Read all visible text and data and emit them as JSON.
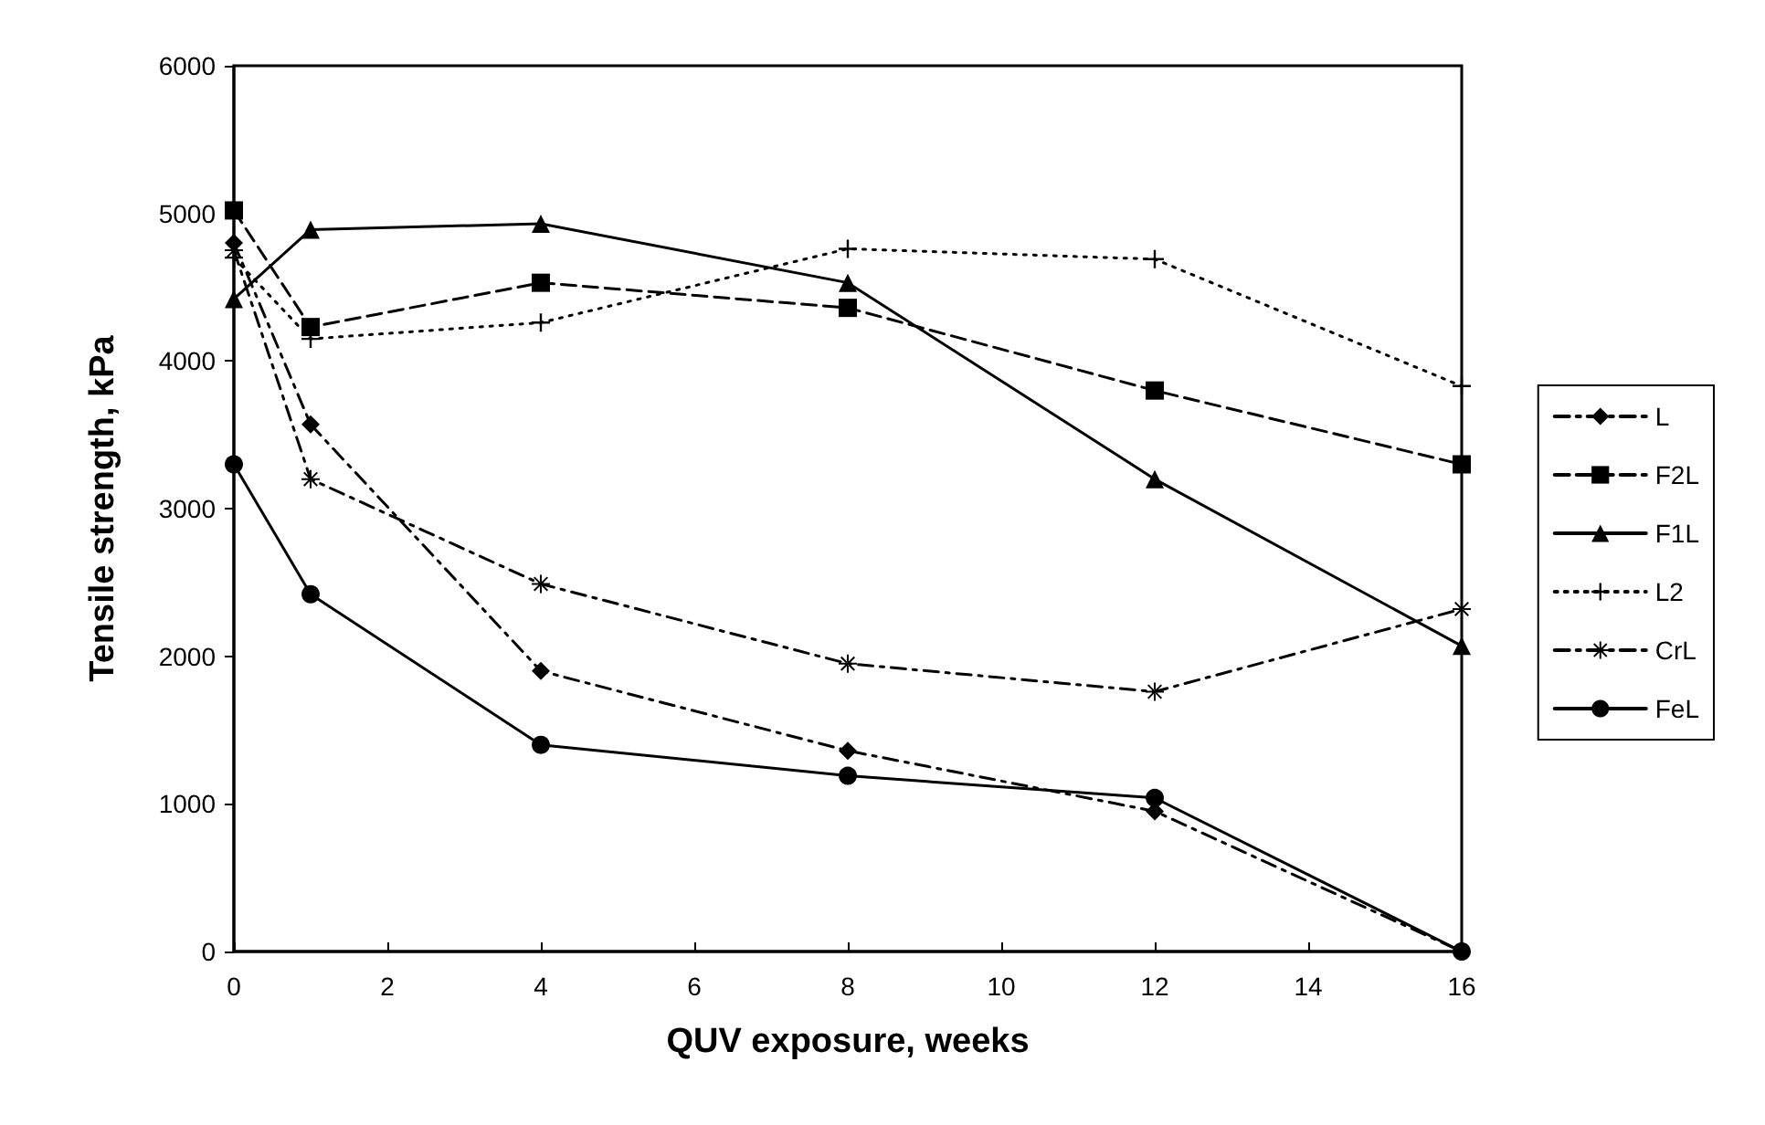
{
  "chart_data": {
    "type": "line",
    "xlabel": "QUV exposure, weeks",
    "ylabel": "Tensile strength, kPa",
    "x": [
      0,
      1,
      4,
      8,
      12,
      16
    ],
    "series": [
      {
        "name": "L",
        "color": "#000000",
        "marker": "diamond",
        "line_style": "dashdot",
        "values": [
          4800,
          3570,
          1900,
          1360,
          950,
          0
        ]
      },
      {
        "name": "F2L",
        "color": "#000000",
        "marker": "square",
        "line_style": "dashed",
        "values": [
          5020,
          4230,
          4530,
          4360,
          3800,
          3300
        ]
      },
      {
        "name": "F1L",
        "color": "#000000",
        "marker": "triangle",
        "line_style": "solid",
        "values": [
          4420,
          4890,
          4930,
          4530,
          3200,
          2070
        ]
      },
      {
        "name": "L2",
        "color": "#000000",
        "marker": "cross",
        "line_style": "dotted",
        "values": [
          4700,
          4150,
          4260,
          4760,
          4690,
          3830
        ]
      },
      {
        "name": "CrL",
        "color": "#000000",
        "marker": "star",
        "line_style": "dashdot",
        "values": [
          4750,
          3200,
          2490,
          1950,
          1760,
          2320
        ]
      },
      {
        "name": "FeL",
        "color": "#000000",
        "marker": "circle",
        "line_style": "solid",
        "values": [
          3300,
          2420,
          1400,
          1190,
          1040,
          0
        ]
      }
    ],
    "xlim": [
      0,
      16
    ],
    "xticks": [
      0,
      2,
      4,
      6,
      8,
      10,
      12,
      14,
      16
    ],
    "ylim": [
      0,
      6000
    ],
    "yticks": [
      0,
      1000,
      2000,
      3000,
      4000,
      5000,
      6000
    ],
    "grid": false,
    "legend": "right"
  }
}
